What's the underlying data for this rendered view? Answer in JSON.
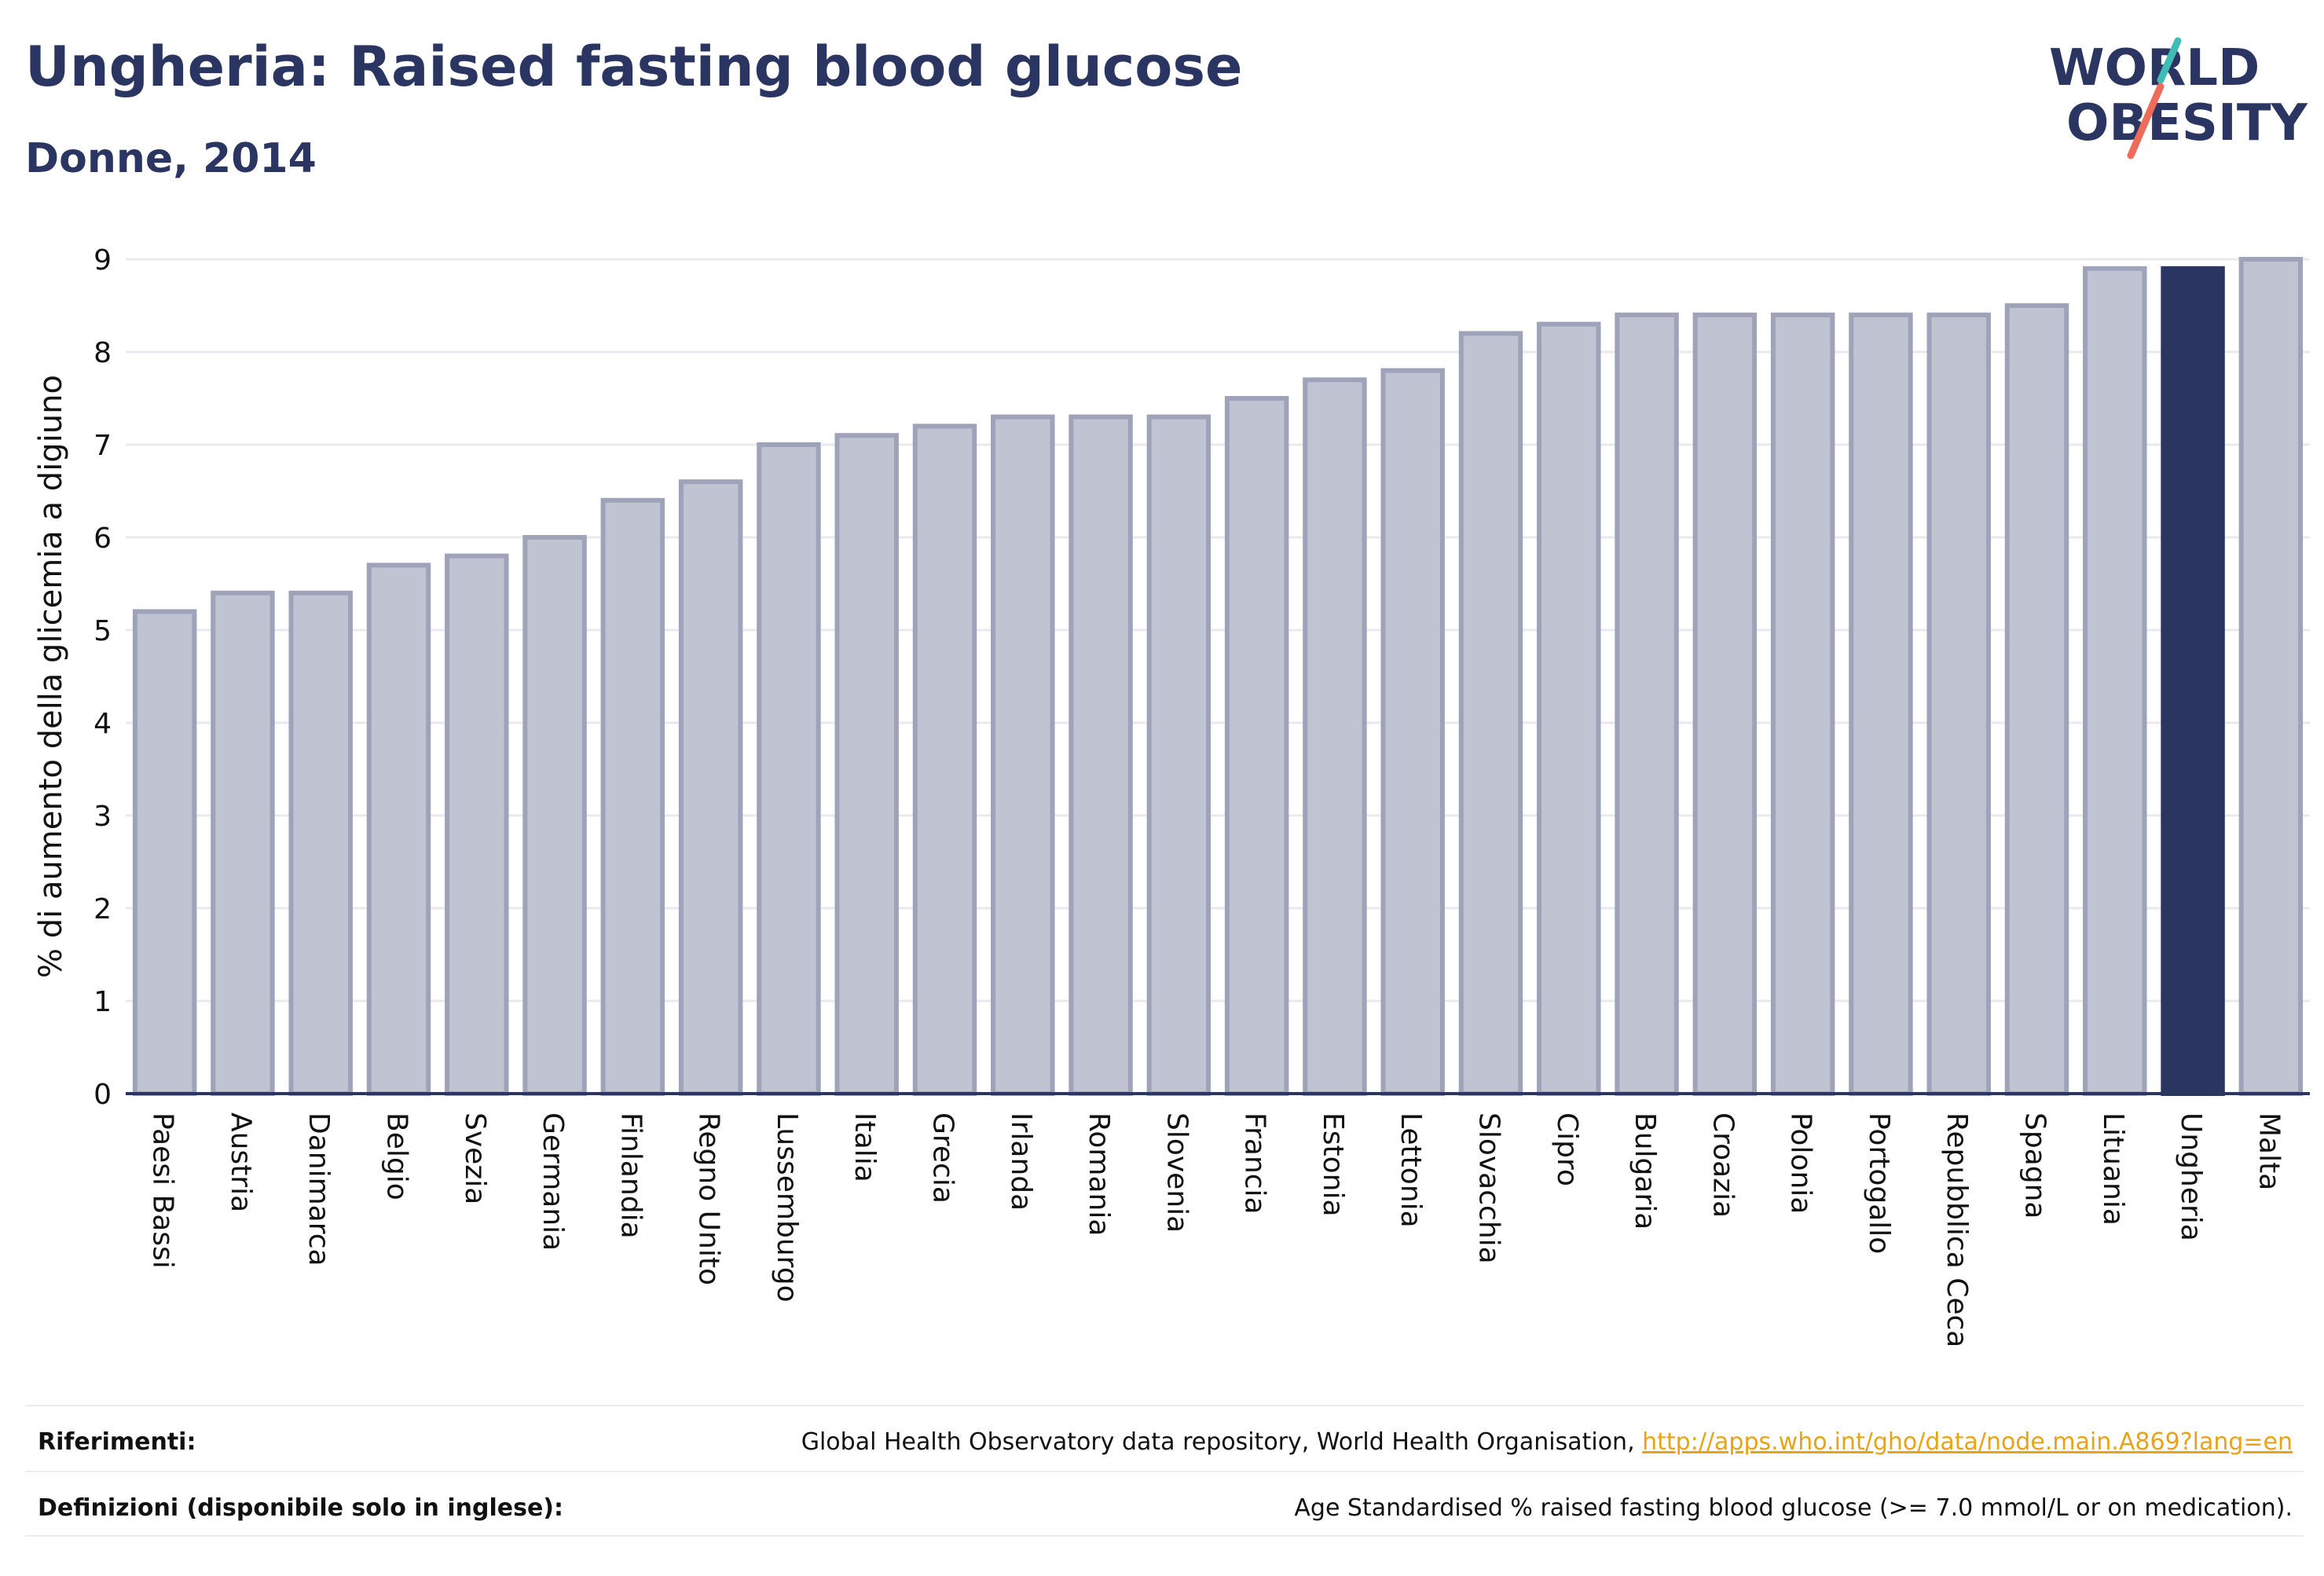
{
  "header": {
    "title": "Ungheria: Raised fasting blood glucose",
    "subtitle": "Donne, 2014"
  },
  "logo": {
    "line1": "WORLD",
    "line2": "OBESITY"
  },
  "chart_data": {
    "type": "bar",
    "ylabel": "% di aumento della glicemia a digiuno",
    "ylim": [
      0,
      9
    ],
    "yticks": [
      0,
      1,
      2,
      3,
      4,
      5,
      6,
      7,
      8,
      9
    ],
    "grid": true,
    "categories": [
      "Paesi Bassi",
      "Austria",
      "Danimarca",
      "Belgio",
      "Svezia",
      "Germania",
      "Finlandia",
      "Regno Unito",
      "Lussemburgo",
      "Italia",
      "Grecia",
      "Irlanda",
      "Romania",
      "Slovenia",
      "Francia",
      "Estonia",
      "Lettonia",
      "Slovacchia",
      "Cipro",
      "Bulgaria",
      "Croazia",
      "Polonia",
      "Portogallo",
      "Repubblica Ceca",
      "Spagna",
      "Lituania",
      "Ungheria",
      "Malta"
    ],
    "values": [
      5.2,
      5.4,
      5.4,
      5.7,
      5.8,
      6.0,
      6.4,
      6.6,
      7.0,
      7.1,
      7.2,
      7.3,
      7.3,
      7.3,
      7.5,
      7.7,
      7.8,
      8.2,
      8.3,
      8.4,
      8.4,
      8.4,
      8.4,
      8.4,
      8.5,
      8.9,
      8.9,
      9.0
    ],
    "highlight": "Ungheria",
    "colors": {
      "bar": "#c0c3d1",
      "bar_border": "#9ea3b9",
      "highlight": "#2b3561",
      "axis": "#2b3561",
      "grid": "#e9eaf0"
    }
  },
  "footer": {
    "references_label": "Riferimenti:",
    "references_text": "Global Health Observatory data repository, World Health Organisation, ",
    "references_link": "http://apps.who.int/gho/data/node.main.A869?lang=en",
    "definitions_label": "Definizioni (disponibile solo in inglese):",
    "definitions_text": "Age Standardised % raised fasting blood glucose (>= 7.0 mmol/L or on medication)."
  }
}
